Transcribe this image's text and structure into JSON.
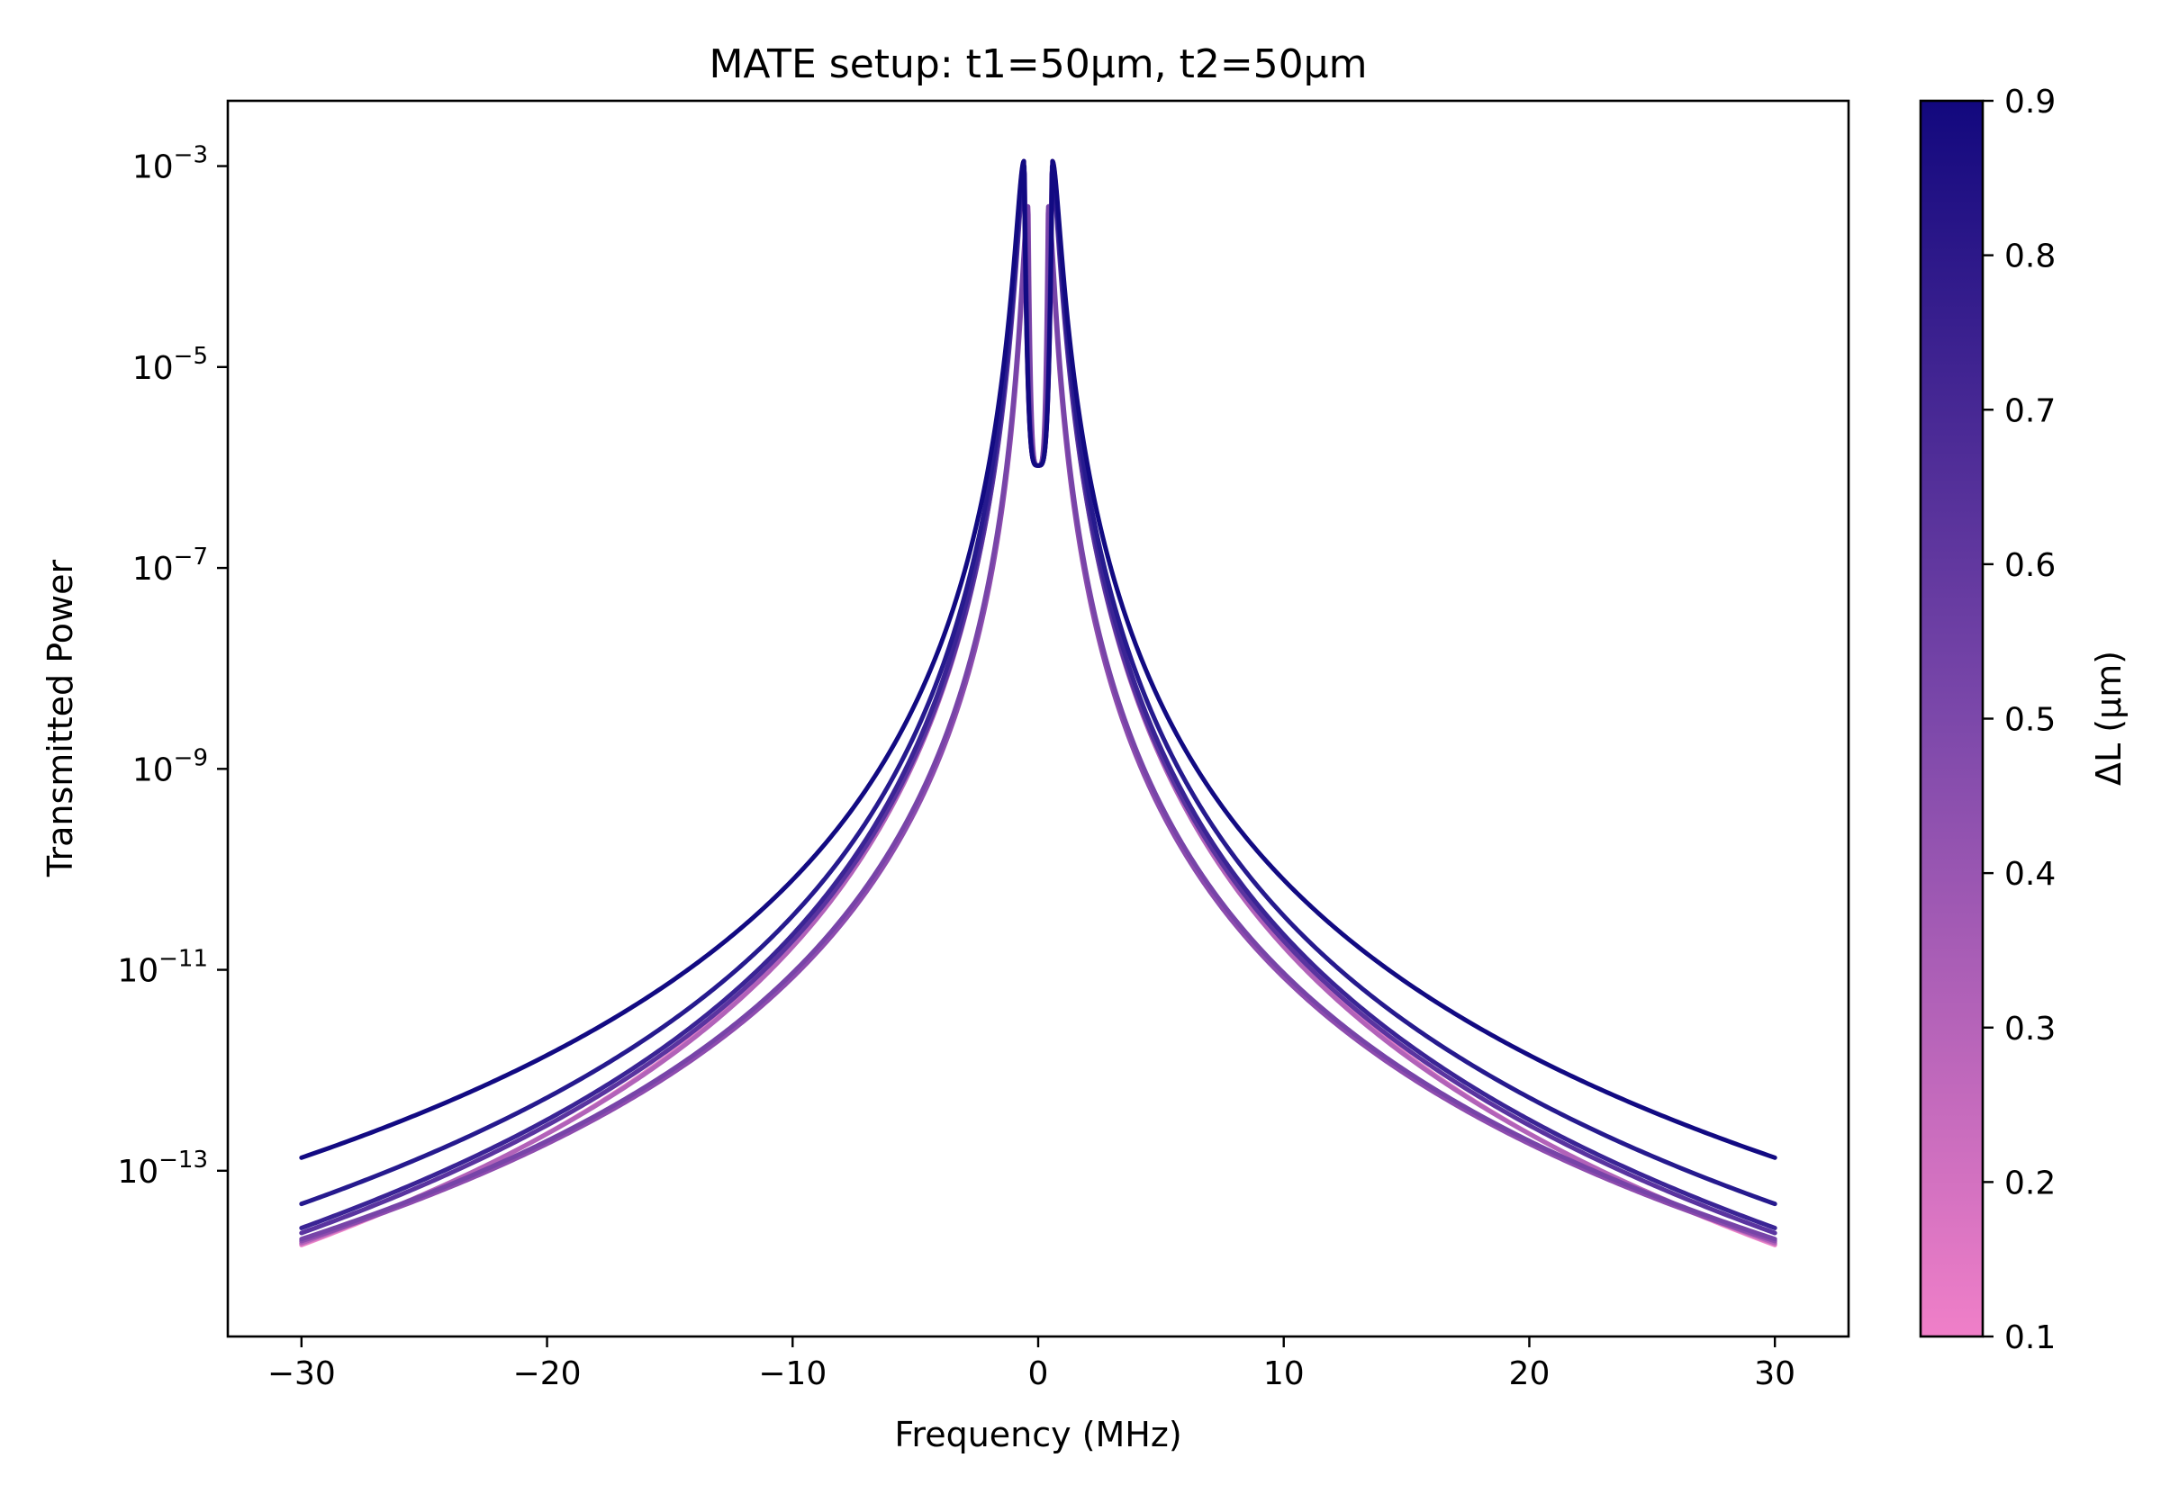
{
  "chart_data": {
    "type": "line",
    "title": "MATE setup: t1=50µm, t2=50µm",
    "xlabel": "Frequency (MHz)",
    "ylabel": "Transmitted Power",
    "xlim": [
      -33,
      33
    ],
    "ylim_log10": [
      -14.65,
      -2.35
    ],
    "yscale": "log",
    "grid": false,
    "legend": "none",
    "x_ticks": [
      "−30",
      "−20",
      "−10",
      "0",
      "10",
      "20",
      "30"
    ],
    "x_tick_values": [
      -30,
      -20,
      -10,
      0,
      10,
      20,
      30
    ],
    "y_ticks": [
      {
        "base": "10",
        "exp": "−3",
        "log10": -3
      },
      {
        "base": "10",
        "exp": "−5",
        "log10": -5
      },
      {
        "base": "10",
        "exp": "−7",
        "log10": -7
      },
      {
        "base": "10",
        "exp": "−9",
        "log10": -9
      },
      {
        "base": "10",
        "exp": "−11",
        "log10": -11
      },
      {
        "base": "10",
        "exp": "−13",
        "log10": -13
      }
    ],
    "x_range": [
      -30,
      30
    ],
    "series": [
      {
        "dL": 0.1,
        "color": "#ee85c9",
        "log10_peak": -2.95,
        "peak_x": 0.58,
        "log10_at_30": -13.74
      },
      {
        "dL": 0.2,
        "color": "#d87ac3",
        "log10_peak": -3.0,
        "peak_x": 0.57,
        "log10_at_30": -13.73
      },
      {
        "dL": 0.3,
        "color": "#b262b9",
        "log10_peak": -3.05,
        "peak_x": 0.56,
        "log10_at_30": -13.72
      },
      {
        "dL": 0.4,
        "color": "#8e4cae",
        "log10_peak": -3.4,
        "peak_x": 0.4,
        "log10_at_30": -13.7
      },
      {
        "dL": 0.5,
        "color": "#7744a8",
        "log10_peak": -3.4,
        "peak_x": 0.42,
        "log10_at_30": -13.68
      },
      {
        "dL": 0.6,
        "color": "#5a34a0",
        "log10_peak": -3.05,
        "peak_x": 0.55,
        "log10_at_30": -13.62
      },
      {
        "dL": 0.7,
        "color": "#3a2495",
        "log10_peak": -3.0,
        "peak_x": 0.56,
        "log10_at_30": -13.57
      },
      {
        "dL": 0.8,
        "color": "#261a8e",
        "log10_peak": -3.0,
        "peak_x": 0.57,
        "log10_at_30": -13.33
      },
      {
        "dL": 0.9,
        "color": "#120a82",
        "log10_peak": -2.95,
        "peak_x": 0.58,
        "log10_at_30": -12.87
      }
    ],
    "center_dip_log10": -5.98,
    "colorbar": {
      "label": "ΔL (µm)",
      "min": 0.1,
      "max": 0.9,
      "ticks": [
        "0.1",
        "0.2",
        "0.3",
        "0.4",
        "0.5",
        "0.6",
        "0.7",
        "0.8",
        "0.9"
      ],
      "color_low": "#f07fc8",
      "color_high": "#12087e"
    }
  }
}
